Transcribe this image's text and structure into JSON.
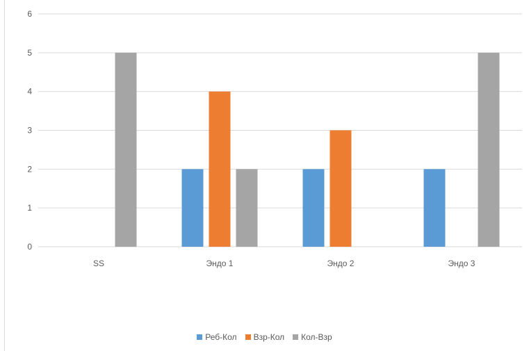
{
  "chart_data": {
    "type": "bar",
    "categories": [
      "SS",
      "Эндо 1",
      "Эндо 2",
      "Эндо 3"
    ],
    "series": [
      {
        "name": "Реб-Кол",
        "color": "#5b9bd5",
        "values": [
          0,
          2,
          2,
          2
        ]
      },
      {
        "name": "Взр-Кол",
        "color": "#ed7d31",
        "values": [
          0,
          4,
          3,
          0
        ]
      },
      {
        "name": "Кол-Взр",
        "color": "#a5a5a5",
        "values": [
          5,
          2,
          0,
          5
        ]
      }
    ],
    "yticks": [
      "0",
      "1",
      "2",
      "3",
      "4",
      "5",
      "6"
    ],
    "ylim": [
      0,
      6
    ],
    "grid": true,
    "legend_position": "bottom",
    "title": "",
    "xlabel": "",
    "ylabel": ""
  }
}
